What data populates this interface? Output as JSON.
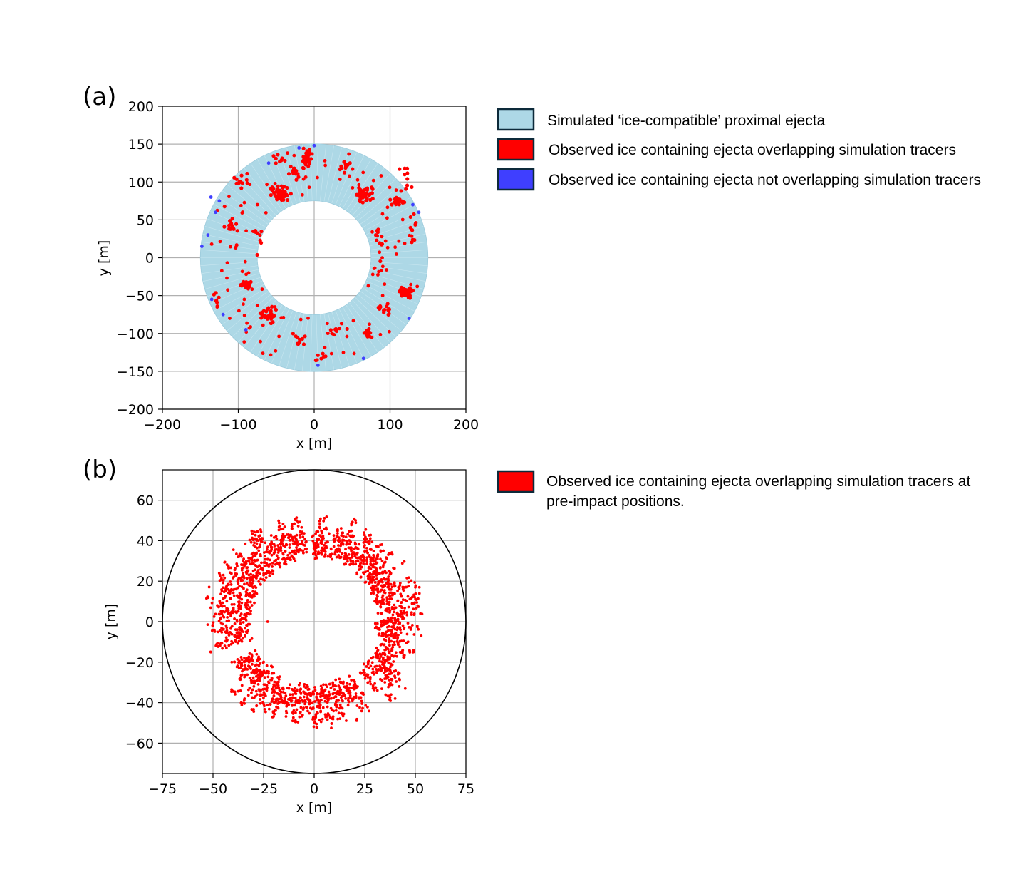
{
  "chart_data": [
    {
      "panel_label": "(a)",
      "type": "scatter",
      "xlabel": "x [m]",
      "ylabel": "y [m]",
      "xlim": [
        -200,
        200
      ],
      "ylim": [
        -200,
        200
      ],
      "xticks": [
        -200,
        -100,
        0,
        100,
        200
      ],
      "yticks": [
        -200,
        -150,
        -100,
        -50,
        0,
        50,
        100,
        150,
        200
      ],
      "x_tick_labels": [
        "−200",
        "−100",
        "0",
        "100",
        "200"
      ],
      "y_tick_labels": [
        "−200",
        "−150",
        "−100",
        "−50",
        "0",
        "50",
        "100",
        "150",
        "200"
      ],
      "grid": true,
      "legend_position": "right",
      "series": [
        {
          "name": "Simulated ‘ice-compatible’ proximal ejecta",
          "color": "#add8e6",
          "edge_color": "#0d2a3a",
          "shape": "annulus",
          "inner_radius": 75,
          "outer_radius": 150,
          "center": [
            0,
            0
          ]
        },
        {
          "name": "Observed ice containing ejecta overlapping simulation tracers",
          "color": "#ff0000",
          "edge_color": "#0d2a3a",
          "cluster_count": 22
        },
        {
          "name": "Observed ice containing ejecta not overlapping simulation tracers",
          "color": "#3f3fff",
          "edge_color": "#0d2a3a",
          "x": [
            -136,
            -130,
            -125,
            -140,
            -148,
            -135,
            -120,
            -90,
            -60,
            0,
            65,
            130,
            138,
            125,
            -20,
            5
          ],
          "y": [
            80,
            60,
            75,
            30,
            15,
            -55,
            -75,
            -95,
            125,
            148,
            -133,
            70,
            60,
            -80,
            145,
            -142
          ]
        }
      ]
    },
    {
      "panel_label": "(b)",
      "type": "scatter",
      "xlabel": "x [m]",
      "ylabel": "y [m]",
      "xlim": [
        -75,
        75
      ],
      "ylim": [
        -75,
        75
      ],
      "xticks": [
        -75,
        -50,
        -25,
        0,
        25,
        50,
        75
      ],
      "yticks": [
        -60,
        -40,
        -20,
        0,
        20,
        40,
        60
      ],
      "x_tick_labels": [
        "−75",
        "−50",
        "−25",
        "0",
        "25",
        "50",
        "75"
      ],
      "y_tick_labels": [
        "−60",
        "−40",
        "−20",
        "0",
        "20",
        "40",
        "60"
      ],
      "grid": true,
      "legend_position": "right",
      "boundary_circle_radius": 75,
      "series": [
        {
          "name": "Observed ice containing ejecta overlapping simulation tracers at pre-impact positions.",
          "legend_lines": [
            "Observed ice containing ejecta overlapping simulation tracers at",
            "pre-impact positions."
          ],
          "color": "#ff0000",
          "edge_color": "#0d2a3a",
          "ring_inner_radius": 30,
          "ring_outer_radius": 55
        }
      ]
    }
  ]
}
